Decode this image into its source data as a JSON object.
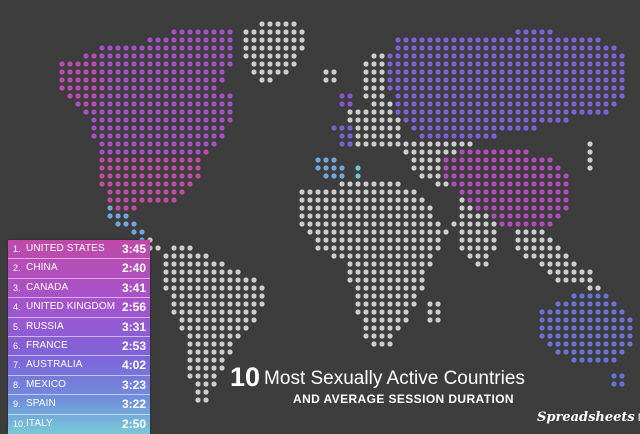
{
  "title": {
    "number": "10",
    "text": "Most Sexually Active Countries",
    "subtitle": "AND AVERAGE SESSION DURATION"
  },
  "brand": {
    "name": "Spreadsheets",
    "tail": "D"
  },
  "colors": {
    "background": "#3d3d3d",
    "land_default": "#cfcfcf",
    "highlight_magenta": "#c44aa3",
    "highlight_purple": "#9b4fd0",
    "highlight_blue": "#6a72dc",
    "highlight_lightblue": "#6fa8e0",
    "highlight_cyan": "#6cc7d9"
  },
  "ranking": [
    {
      "rank": "1.",
      "country": "UNITED STATES",
      "duration": "3:45",
      "color": "#c44aa3"
    },
    {
      "rank": "2.",
      "country": "CHINA",
      "duration": "2:40",
      "color": "#b44dbb"
    },
    {
      "rank": "3.",
      "country": "CANADA",
      "duration": "3:41",
      "color": "#a651cc"
    },
    {
      "rank": "4.",
      "country": "UNITED KINGDOM",
      "duration": "2:56",
      "color": "#9455d4"
    },
    {
      "rank": "5.",
      "country": "RUSSIA",
      "duration": "3:31",
      "color": "#845cd9"
    },
    {
      "rank": "6.",
      "country": "FRANCE",
      "duration": "2:53",
      "color": "#7864db"
    },
    {
      "rank": "7.",
      "country": "AUSTRALIA",
      "duration": "4:02",
      "color": "#6a72dc"
    },
    {
      "rank": "8.",
      "country": "MEXICO",
      "duration": "3:23",
      "color": "#6b90dd"
    },
    {
      "rank": "9.",
      "country": "SPAIN",
      "duration": "3:22",
      "color": "#6faede"
    },
    {
      "rank": "10.",
      "country": "ITALY",
      "duration": "2:50",
      "color": "#6cc7d9"
    }
  ]
}
